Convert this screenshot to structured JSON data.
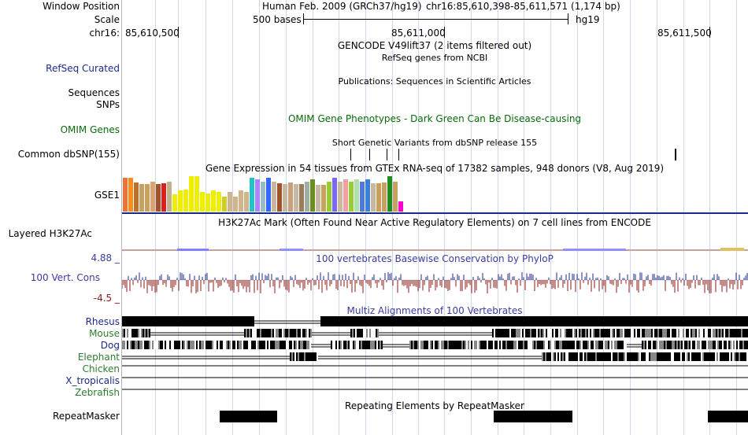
{
  "labels": {
    "window_position": "Window Position",
    "scale": "Scale",
    "chrom": "chr16:",
    "refseq": "RefSeq Curated",
    "sequences": "Sequences",
    "snps": "SNPs",
    "omim": "OMIM Genes",
    "common_dbsnp": "Common dbSNP(155)",
    "gse1": "GSE1",
    "h3k27ac": "Layered H3K27Ac",
    "cons": "100 Vert. Cons",
    "cons_max": "4.88 _",
    "cons_min": "-4.5 _",
    "repeatmasker": "RepeatMasker"
  },
  "header": {
    "assembly": "Human Feb. 2009 (GRCh37/hg19)",
    "position": "chr16:85,610,398-85,611,571 (1,174 bp)",
    "scale_bases": "500 bases",
    "scale_db": "hg19",
    "ticks": [
      "85,610,500",
      "85,611,000",
      "85,611,500"
    ]
  },
  "tracks": {
    "gencode": "GENCODE V49lift37 (2 items filtered out)",
    "refseq_title": "RefSeq genes from NCBI",
    "publications": "Publications: Sequences in Scientific Articles",
    "omim_title": "OMIM Gene Phenotypes - Dark Green Can Be Disease-causing",
    "dbsnp_title": "Short Genetic Variants from dbSNP release 155",
    "gtex_title": "Gene Expression in 54 tissues from GTEx RNA-seq of 17382 samples, 948 donors (V8, Aug 2019)",
    "h3k27ac_title": "H3K27Ac Mark (Often Found Near Active Regulatory Elements) on 7 cell lines from ENCODE",
    "phylop_title": "100 vertebrates Basewise Conservation by PhyloP",
    "multiz_title": "Multiz Alignments of 100 Vertebrates",
    "repeat_title": "Repeating Elements by RepeatMasker"
  },
  "species": [
    "Rhesus",
    "Mouse",
    "Dog",
    "Elephant",
    "Chicken",
    "X_tropicalis",
    "Zebrafish"
  ],
  "gtex": {
    "colors": [
      "#e8743b",
      "#ff8c1a",
      "#b87333",
      "#c8a060",
      "#c8a060",
      "#d9a46e",
      "#a0522d",
      "#e01c1c",
      "#c0b090",
      "#eeee00",
      "#eeee00",
      "#eeee00",
      "#eeee00",
      "#eeee00",
      "#eeee00",
      "#eeee00",
      "#eeee00",
      "#eeee00",
      "#cccc33",
      "#d2b48c",
      "#d2b48c",
      "#d2b48c",
      "#d2b48c",
      "#1ac6c6",
      "#ab82ff",
      "#99bbcc",
      "#3366ff",
      "#c8b8a0",
      "#a0522d",
      "#c8b8a0",
      "#c8a080",
      "#c8b8a0",
      "#9a7c5c",
      "#a0b0a0",
      "#6b8e23",
      "#c8b8a0",
      "#c8a060",
      "#99cc33",
      "#7b68ee",
      "#c8b8a0",
      "#f0a0a0",
      "#9acd32",
      "#b0e0b0",
      "#4b7bd6",
      "#3b7fd9",
      "#c8b8a0",
      "#c8a060",
      "#c8a060",
      "#228b22",
      "#c8a060",
      "#ff00cc"
    ],
    "values": [
      0.95,
      0.95,
      0.82,
      0.78,
      0.78,
      0.85,
      0.78,
      0.8,
      0.85,
      0.48,
      0.6,
      0.62,
      1.0,
      1.0,
      0.55,
      0.5,
      0.6,
      0.55,
      0.42,
      0.55,
      0.42,
      0.6,
      0.55,
      0.95,
      0.92,
      0.85,
      0.95,
      0.85,
      0.8,
      0.78,
      0.82,
      0.78,
      0.78,
      0.85,
      0.9,
      0.75,
      0.75,
      0.85,
      0.95,
      0.85,
      0.9,
      0.85,
      0.9,
      0.85,
      0.9,
      0.8,
      0.8,
      0.82,
      1.0,
      0.85,
      0.28
    ]
  },
  "colors": {
    "ruler_blue": "#1d2a8a",
    "omim_green": "#0a6b0a",
    "gtex_band": "#1a2a8a",
    "phylop_pos": "#1d2a8a",
    "phylop_neg": "#8b1a1a"
  }
}
